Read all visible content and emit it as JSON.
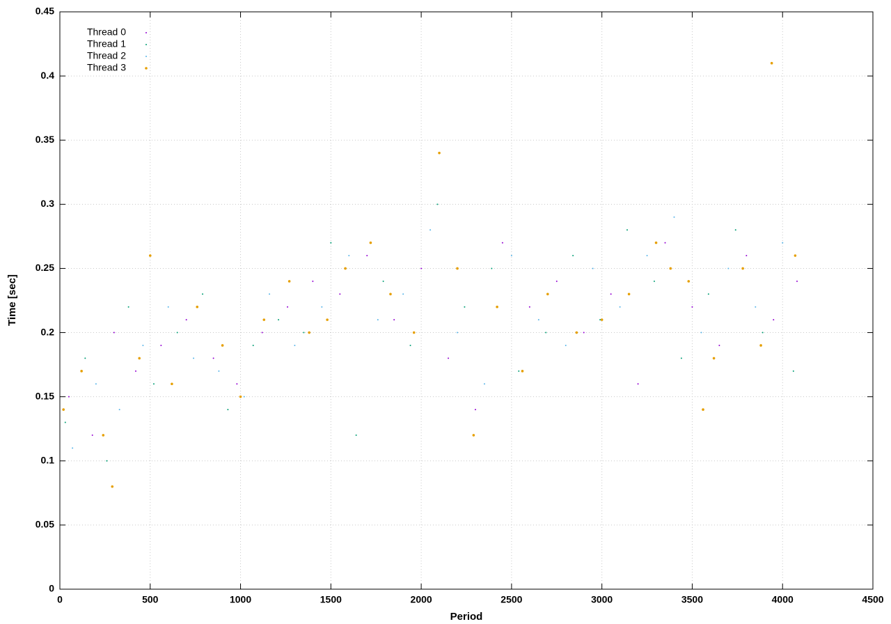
{
  "chart_data": {
    "type": "scatter",
    "xlabel": "Period",
    "ylabel": "Time [sec]",
    "xlim": [
      0,
      4500
    ],
    "ylim": [
      0,
      0.45
    ],
    "xticks": [
      0,
      500,
      1000,
      1500,
      2000,
      2500,
      3000,
      3500,
      4000,
      4500
    ],
    "yticks": [
      0,
      0.05,
      0.1,
      0.15,
      0.2,
      0.25,
      0.3,
      0.35,
      0.4,
      0.45
    ],
    "grid": true,
    "legend": "top-left",
    "series": [
      {
        "name": "Thread 0",
        "color": "#9400d3",
        "x": [
          50,
          180,
          300,
          420,
          560,
          700,
          850,
          980,
          1120,
          1260,
          1400,
          1550,
          1700,
          1850,
          2000,
          2150,
          2300,
          2450,
          2600,
          2750,
          2900,
          3050,
          3200,
          3350,
          3500,
          3650,
          3800,
          3950,
          4080
        ],
        "values": [
          0.15,
          0.12,
          0.2,
          0.17,
          0.19,
          0.21,
          0.18,
          0.16,
          0.2,
          0.22,
          0.24,
          0.23,
          0.26,
          0.21,
          0.25,
          0.18,
          0.14,
          0.27,
          0.22,
          0.24,
          0.2,
          0.23,
          0.16,
          0.27,
          0.22,
          0.19,
          0.26,
          0.21,
          0.24
        ]
      },
      {
        "name": "Thread 1",
        "color": "#009e73",
        "x": [
          30,
          140,
          260,
          380,
          520,
          650,
          790,
          930,
          1070,
          1210,
          1350,
          1500,
          1640,
          1790,
          1940,
          2090,
          2240,
          2390,
          2540,
          2690,
          2840,
          2990,
          3140,
          3290,
          3440,
          3590,
          3740,
          3890,
          4060
        ],
        "values": [
          0.13,
          0.18,
          0.1,
          0.22,
          0.16,
          0.2,
          0.23,
          0.14,
          0.19,
          0.21,
          0.2,
          0.27,
          0.12,
          0.24,
          0.19,
          0.3,
          0.22,
          0.25,
          0.17,
          0.2,
          0.26,
          0.21,
          0.28,
          0.24,
          0.18,
          0.23,
          0.28,
          0.2,
          0.17
        ]
      },
      {
        "name": "Thread 2",
        "color": "#56b4e9",
        "x": [
          70,
          200,
          330,
          460,
          600,
          740,
          880,
          1020,
          1160,
          1300,
          1450,
          1600,
          1760,
          1900,
          2050,
          2200,
          2350,
          2500,
          2650,
          2800,
          2950,
          3100,
          3250,
          3400,
          3550,
          3700,
          3850,
          4000
        ],
        "values": [
          0.11,
          0.16,
          0.14,
          0.19,
          0.22,
          0.18,
          0.17,
          0.15,
          0.23,
          0.19,
          0.22,
          0.26,
          0.21,
          0.23,
          0.28,
          0.2,
          0.16,
          0.26,
          0.21,
          0.19,
          0.25,
          0.22,
          0.26,
          0.29,
          0.2,
          0.25,
          0.22,
          0.27
        ]
      },
      {
        "name": "Thread 3",
        "color": "#e69f00",
        "x": [
          20,
          120,
          240,
          290,
          440,
          500,
          620,
          760,
          900,
          1000,
          1130,
          1270,
          1380,
          1480,
          1580,
          1720,
          1830,
          1960,
          2100,
          2200,
          2290,
          2420,
          2560,
          2700,
          2860,
          3000,
          3150,
          3300,
          3380,
          3480,
          3560,
          3620,
          3780,
          3880,
          3940,
          4070
        ],
        "values": [
          0.14,
          0.17,
          0.12,
          0.08,
          0.18,
          0.26,
          0.16,
          0.22,
          0.19,
          0.15,
          0.21,
          0.24,
          0.2,
          0.21,
          0.25,
          0.27,
          0.23,
          0.2,
          0.34,
          0.25,
          0.12,
          0.22,
          0.17,
          0.23,
          0.2,
          0.21,
          0.23,
          0.27,
          0.25,
          0.24,
          0.14,
          0.18,
          0.25,
          0.19,
          0.41,
          0.26
        ]
      }
    ]
  }
}
